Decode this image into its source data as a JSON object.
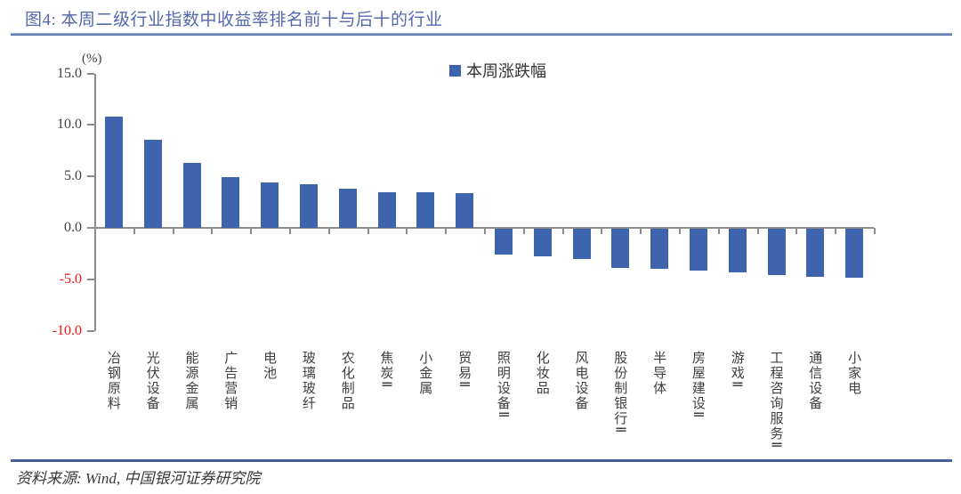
{
  "header": {
    "title": "图4: 本周二级行业指数中收益率排名前十与后十的行业"
  },
  "chart_data": {
    "type": "bar",
    "title": "本周二级行业指数中收益率排名前十与后十的行业",
    "unit_label": "(%)",
    "legend": {
      "label": "本周涨跌幅",
      "position": "top-center"
    },
    "categories": [
      "冶钢原料",
      "光伏设备",
      "能源金属",
      "广告营销",
      "电池",
      "玻璃玻纤",
      "农化制品",
      "焦炭Ⅱ",
      "小金属",
      "贸易Ⅱ",
      "照明设备Ⅱ",
      "化妆品",
      "风电设备",
      "股份制银行Ⅱ",
      "半导体",
      "房屋建设Ⅱ",
      "游戏Ⅱ",
      "工程咨询服务Ⅱ",
      "通信设备",
      "小家电"
    ],
    "values": [
      10.8,
      8.6,
      6.3,
      4.9,
      4.4,
      4.2,
      3.8,
      3.5,
      3.5,
      3.4,
      -2.5,
      -2.7,
      -2.9,
      -3.8,
      -3.9,
      -4.1,
      -4.2,
      -4.5,
      -4.7,
      -4.8
    ],
    "ylim": [
      -10,
      15
    ],
    "yticks": [
      15.0,
      10.0,
      5.0,
      0.0,
      -5.0,
      -10.0
    ],
    "grid": false,
    "xlabel": "",
    "ylabel": "(%)",
    "colors": {
      "bar": "#3E64AD",
      "axis": "#8C8C8C",
      "tick_label": "#404040",
      "negative_tick_label": "#FF1111",
      "category_label": "#3F3F3F",
      "title_text": "#5568AC",
      "rule": "#44619E"
    }
  },
  "footer": {
    "source": "资料来源: Wind, 中国银河证券研究院"
  }
}
